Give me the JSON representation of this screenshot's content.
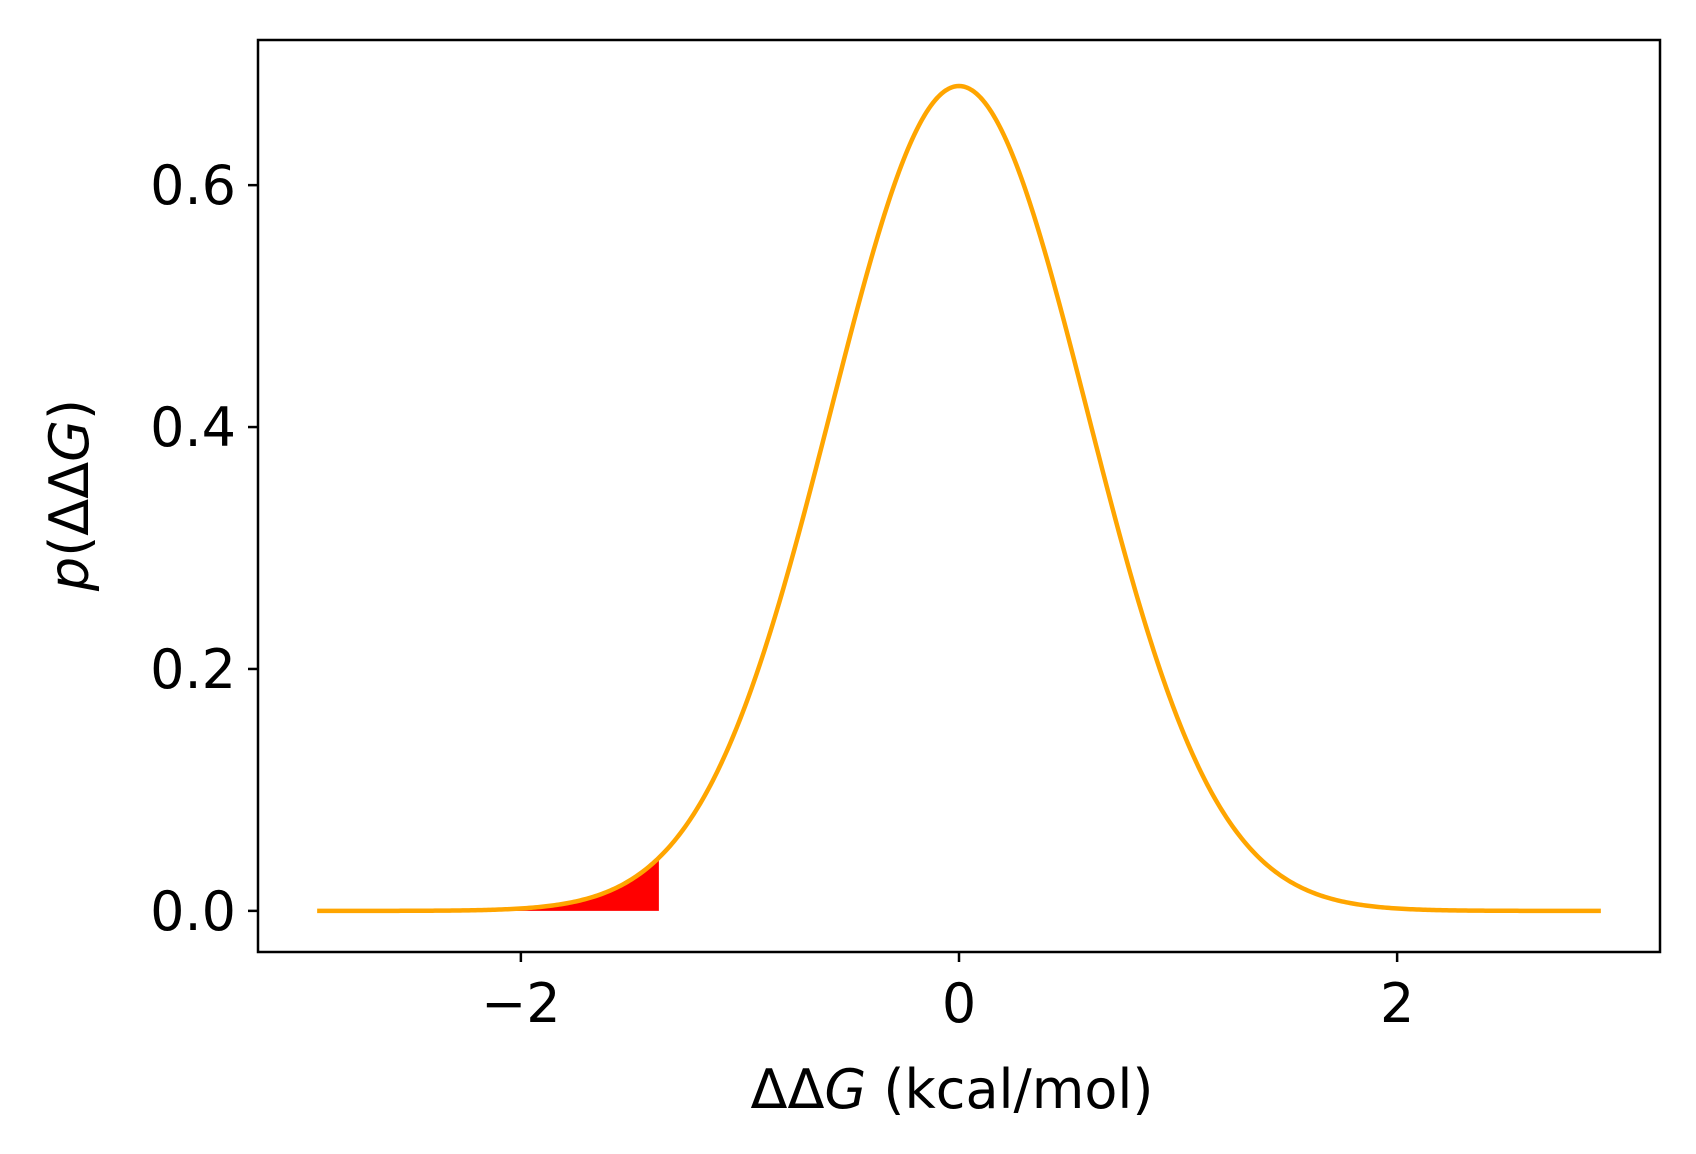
{
  "chart_data": {
    "type": "area",
    "title": "",
    "xlabel": "ΔΔG (kcal/mol)",
    "xlabel_parts": {
      "symbol": "ΔΔ",
      "italic": "G",
      "unit": " (kcal/mol)"
    },
    "ylabel": "p(ΔΔG)",
    "ylabel_parts": {
      "italic_p": "p",
      "open": "(ΔΔ",
      "italic_G": "G",
      "close": ")"
    },
    "xlim": [
      -3.2,
      3.2
    ],
    "ylim": [
      -0.034,
      0.72
    ],
    "xticks": [
      -2,
      0,
      2
    ],
    "xtick_labels": [
      "−2",
      "0",
      "2"
    ],
    "yticks": [
      0.0,
      0.2,
      0.4,
      0.6
    ],
    "ytick_labels": [
      "0.0",
      "0.2",
      "0.4",
      "0.6"
    ],
    "grid": false,
    "series": [
      {
        "kind": "line",
        "color": "#FFA500",
        "distribution": "normal",
        "mean": 0.0,
        "std": 0.585,
        "x_range": [
          -2.93,
          2.93
        ]
      },
      {
        "kind": "fill",
        "color": "#FF0000",
        "x_range": [
          -2.93,
          -1.37
        ]
      }
    ]
  }
}
